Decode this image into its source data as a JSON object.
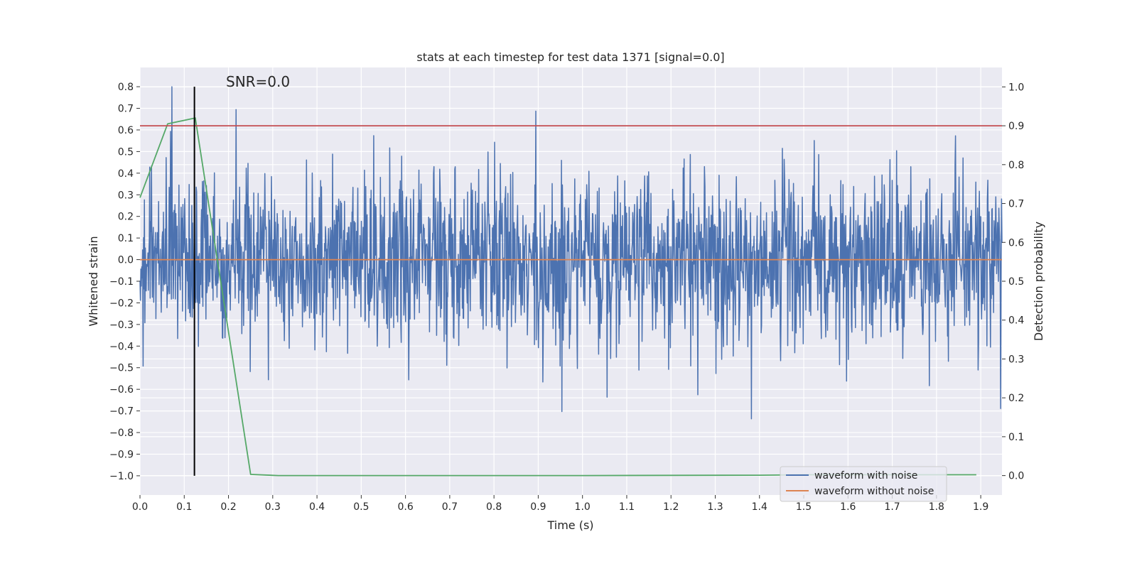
{
  "chart_data": {
    "type": "line",
    "title": "stats at each timestep for test data 1371 [signal=0.0]",
    "annotation": "SNR=0.0",
    "xlabel": "Time (s)",
    "ylabel": "Whitened strain",
    "y2label": "Detection probability",
    "xlim": [
      0.0,
      1.948
    ],
    "ylim": [
      -1.089,
      0.889
    ],
    "y2lim": [
      -0.05,
      1.05
    ],
    "xticks": [
      "0.0",
      "0.1",
      "0.2",
      "0.3",
      "0.4",
      "0.5",
      "0.6",
      "0.7",
      "0.8",
      "0.9",
      "1.0",
      "1.1",
      "1.2",
      "1.3",
      "1.4",
      "1.5",
      "1.6",
      "1.7",
      "1.8",
      "1.9"
    ],
    "yticks": [
      "0.8",
      "0.7",
      "0.6",
      "0.5",
      "0.4",
      "0.3",
      "0.2",
      "0.1",
      "0.0",
      "−0.1",
      "−0.2",
      "−0.3",
      "−0.4",
      "−0.5",
      "−0.6",
      "−0.7",
      "−0.8",
      "−0.9",
      "−1.0"
    ],
    "y2ticks": [
      "0.0",
      "0.1",
      "0.2",
      "0.3",
      "0.4",
      "0.5",
      "0.6",
      "0.7",
      "0.8",
      "0.9",
      "1.0"
    ],
    "grid": true,
    "legend_position": "lower-right",
    "series": [
      {
        "name": "waveform with noise",
        "axis": "left",
        "color": "#4c72b0",
        "generator": {
          "kind": "gaussian-noise",
          "samples": 1948,
          "std": 0.2,
          "seed": 1371
        }
      },
      {
        "name": "waveform without noise",
        "axis": "left",
        "color": "#dd8452",
        "x": [
          0.0,
          1.948
        ],
        "y": [
          0.0,
          0.0
        ]
      },
      {
        "name": "detection probability",
        "axis": "right",
        "color": "#55a868",
        "x": [
          0.0,
          0.0625,
          0.125,
          0.25,
          0.3125,
          0.5,
          1.0,
          1.4,
          1.5,
          1.89
        ],
        "y": [
          0.715,
          0.905,
          0.92,
          0.003,
          0.0,
          0.0,
          0.0,
          0.001,
          0.002,
          0.002
        ]
      },
      {
        "name": "threshold",
        "axis": "right",
        "color": "#c44e52",
        "x": [
          0.0,
          1.948
        ],
        "y": [
          0.9,
          0.9
        ]
      },
      {
        "name": "detection time marker",
        "axis": "left",
        "color": "#000000",
        "x": [
          0.123,
          0.123
        ],
        "y": [
          -1.0,
          0.8
        ]
      }
    ],
    "legend": [
      "waveform with noise",
      "waveform without noise"
    ],
    "colors": {
      "background": "#eaeaf2",
      "grid": "#ffffff"
    }
  }
}
